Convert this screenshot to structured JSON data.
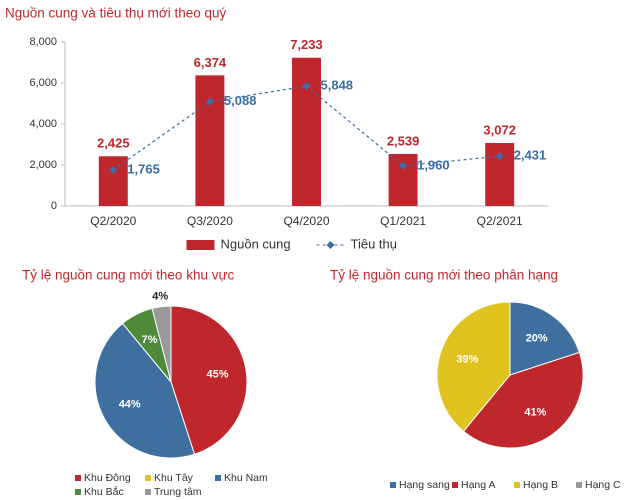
{
  "chart_data": [
    {
      "type": "bar",
      "title": "Nguồn cung và tiêu thụ mới theo quý",
      "categories": [
        "Q2/2020",
        "Q3/2020",
        "Q4/2020",
        "Q1/2021",
        "Q2/2021"
      ],
      "series": [
        {
          "name": "Nguồn cung",
          "type": "bar",
          "color": "#c0272d",
          "values": [
            2425,
            6374,
            7233,
            2539,
            3072
          ],
          "value_labels": [
            "2,425",
            "6,374",
            "7,233",
            "2,539",
            "3,072"
          ]
        },
        {
          "name": "Tiêu thụ",
          "type": "line",
          "color": "#3a6ea5",
          "values": [
            1765,
            5088,
            5848,
            1960,
            2431
          ],
          "value_labels": [
            "1,765",
            "5,088",
            "5,848",
            "1,960",
            "2,431"
          ]
        }
      ],
      "ylim": [
        0,
        8000
      ],
      "yticks": [
        0,
        {
          "value": 2000,
          "label": "2,000"
        },
        {
          "value": 4000,
          "label": "4,000"
        },
        {
          "value": 6000,
          "label": "6,000"
        },
        {
          "value": 8000,
          "label": "8,000"
        }
      ],
      "legend": "bottom"
    },
    {
      "type": "pie",
      "title": "Tỷ lệ nguồn cung mới theo khu vực",
      "categories": [
        "Khu Đông",
        "Khu Tây",
        "Khu Nam",
        "Khu Bắc",
        "Trung tâm"
      ],
      "values": [
        45,
        0,
        44,
        7,
        4
      ],
      "value_labels": [
        "45%",
        null,
        "44%",
        "7%",
        "4%"
      ],
      "colors": [
        "#c0272d",
        "#e0c31f",
        "#3f6f9e",
        "#4f8a3a",
        "#999999"
      ],
      "legend": "bottom"
    },
    {
      "type": "pie",
      "title": "Tỷ lệ nguồn cung mới theo phân hạng",
      "categories": [
        "Hạng sang",
        "Hạng A",
        "Hạng B",
        "Hạng C"
      ],
      "values": [
        20,
        41,
        39,
        0
      ],
      "value_labels": [
        "20%",
        "41%",
        "39%",
        null
      ],
      "colors": [
        "#3f6f9e",
        "#c0272d",
        "#e0c31f",
        "#999999"
      ],
      "legend": "bottom"
    }
  ]
}
